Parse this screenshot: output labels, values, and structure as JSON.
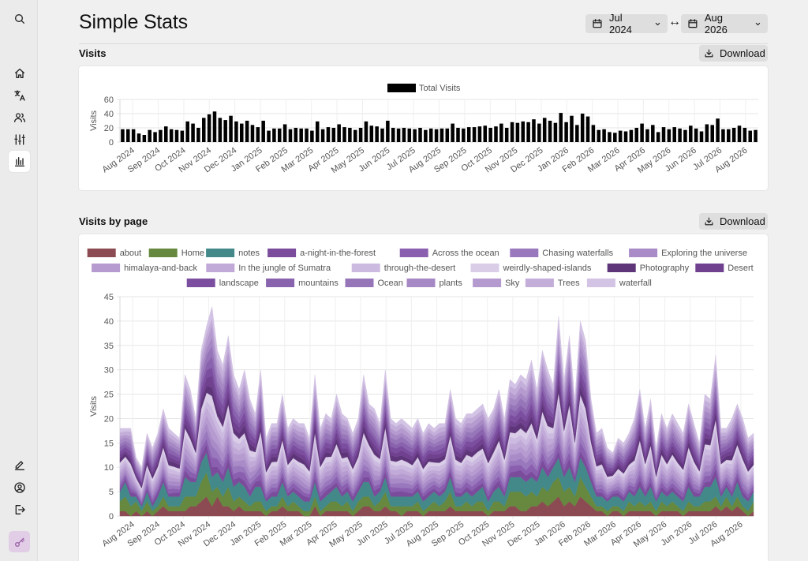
{
  "app": {
    "title": "Simple Stats"
  },
  "sidebar": {
    "top": [
      {
        "name": "search-icon"
      },
      {
        "name": "home-icon"
      },
      {
        "name": "translate-icon"
      },
      {
        "name": "users-icon"
      },
      {
        "name": "sliders-icon"
      },
      {
        "name": "bar-chart-icon",
        "active": true
      }
    ],
    "bottom": [
      {
        "name": "edit-icon"
      },
      {
        "name": "user-circle-icon"
      },
      {
        "name": "logout-icon"
      },
      {
        "name": "key-icon"
      }
    ]
  },
  "date_range": {
    "start": "Jul 2024",
    "end": "Aug 2026",
    "separator": "↔"
  },
  "sections": {
    "visits": {
      "title": "Visits",
      "download_label": "Download"
    },
    "visits_by_page": {
      "title": "Visits by page",
      "download_label": "Download"
    }
  },
  "chart_data": [
    {
      "type": "bar",
      "ylabel": "Visits",
      "ylim": [
        0,
        60
      ],
      "yticks": [
        0,
        20,
        40,
        60
      ],
      "x_tick_labels": [
        "Aug 2024",
        "Sep 2024",
        "Oct 2024",
        "Nov 2024",
        "Dec 2024",
        "Jan 2025",
        "Feb 2025",
        "Mar 2025",
        "Apr 2025",
        "May 2025",
        "Jun 2025",
        "Jul 2025",
        "Aug 2025",
        "Sep 2025",
        "Oct 2025",
        "Nov 2025",
        "Dec 2025",
        "Jan 2026",
        "Feb 2026",
        "Mar 2026",
        "Apr 2026",
        "May 2026",
        "Jun 2026",
        "Jul 2026",
        "Aug 2026"
      ],
      "legend_position": "top-center",
      "grid": true,
      "series": [
        {
          "name": "Total Visits",
          "color": "#000000",
          "values": [
            18,
            18,
            18,
            12,
            10,
            17,
            14,
            17,
            22,
            18,
            17,
            16,
            29,
            26,
            20,
            34,
            39,
            43,
            34,
            31,
            37,
            29,
            26,
            30,
            24,
            21,
            30,
            16,
            19,
            19,
            25,
            18,
            20,
            19,
            19,
            16,
            29,
            18,
            21,
            20,
            25,
            21,
            20,
            17,
            20,
            29,
            23,
            22,
            19,
            30,
            20,
            19,
            20,
            19,
            18,
            20,
            17,
            19,
            18,
            19,
            19,
            26,
            20,
            19,
            21,
            21,
            22,
            23,
            20,
            22,
            26,
            20,
            28,
            27,
            29,
            28,
            32,
            26,
            34,
            30,
            27,
            41,
            28,
            37,
            24,
            40,
            36,
            24,
            17,
            18,
            14,
            13,
            16,
            15,
            17,
            20,
            26,
            18,
            24,
            14,
            21,
            18,
            21,
            19,
            17,
            23,
            19,
            15,
            25,
            24,
            33,
            18,
            18,
            20,
            23,
            20,
            16,
            17
          ]
        }
      ]
    },
    {
      "type": "area",
      "stacked": true,
      "ylabel": "Visits",
      "ylim": [
        0,
        45
      ],
      "yticks": [
        0,
        5,
        10,
        15,
        20,
        25,
        30,
        35,
        40,
        45
      ],
      "x_tick_labels": [
        "Aug 2024",
        "Sep 2024",
        "Oct 2024",
        "Nov 2024",
        "Dec 2024",
        "Jan 2025",
        "Feb 2025",
        "Mar 2025",
        "Apr 2025",
        "May 2025",
        "Jun 2025",
        "Jul 2025",
        "Aug 2025",
        "Sep 2025",
        "Oct 2025",
        "Nov 2025",
        "Dec 2025",
        "Jan 2026",
        "Feb 2026",
        "Mar 2026",
        "Apr 2026",
        "May 2026",
        "Jun 2026",
        "Jul 2026",
        "Aug 2026"
      ],
      "legend_position": "top-center",
      "grid": true,
      "legend": [
        {
          "name": "about",
          "color": "#8c4b52"
        },
        {
          "name": "Home",
          "color": "#66893f"
        },
        {
          "name": "notes",
          "color": "#44898a"
        },
        {
          "name": "a-night-in-the-forest",
          "color": "#7b4c9c"
        },
        {
          "name": "Across the ocean",
          "color": "#8a5fb0"
        },
        {
          "name": "Chasing waterfalls",
          "color": "#9a78bd"
        },
        {
          "name": "Exploring the universe",
          "color": "#a98bc8"
        },
        {
          "name": "himalaya-and-back",
          "color": "#b59bd0"
        },
        {
          "name": "In the jungle of Sumatra",
          "color": "#c1aad8"
        },
        {
          "name": "through-the-desert",
          "color": "#ccbae0"
        },
        {
          "name": "weirdly-shaped-islands",
          "color": "#d9cde8"
        },
        {
          "name": "Photography",
          "color": "#5e3579"
        },
        {
          "name": "Desert",
          "color": "#70418f"
        },
        {
          "name": "landscape",
          "color": "#7c4ea0"
        },
        {
          "name": "mountains",
          "color": "#8a63ae"
        },
        {
          "name": "Ocean",
          "color": "#9775b9"
        },
        {
          "name": "plants",
          "color": "#a688c4"
        },
        {
          "name": "Sky",
          "color": "#b49ace"
        },
        {
          "name": "Trees",
          "color": "#c3add9"
        },
        {
          "name": "waterfall",
          "color": "#d3c3e4"
        }
      ],
      "series_values": {
        "about": [
          1,
          1,
          0,
          1,
          0,
          1,
          0,
          1,
          2,
          1,
          1,
          1,
          1,
          2,
          2,
          3,
          4,
          2,
          4,
          2,
          2,
          1,
          2,
          1,
          1,
          1,
          1,
          0,
          1,
          1,
          2,
          1,
          1,
          1,
          0,
          0,
          2,
          0,
          1,
          1,
          1,
          1,
          1,
          0,
          1,
          2,
          2,
          1,
          1,
          2,
          1,
          1,
          0,
          1,
          1,
          1,
          0,
          1,
          1,
          1,
          1,
          2,
          1,
          1,
          1,
          1,
          1,
          1,
          0,
          1,
          1,
          1,
          2,
          2,
          1,
          1,
          2,
          2,
          3,
          2,
          3,
          4,
          2,
          3,
          2,
          4,
          3,
          2,
          1,
          1,
          0,
          1,
          1,
          0,
          1,
          1,
          1,
          1,
          1,
          0,
          1,
          1,
          1,
          1,
          0,
          1,
          1,
          1,
          1,
          1,
          2,
          1,
          2,
          1,
          2,
          1,
          0,
          1
        ],
        "Home": [
          2,
          3,
          2,
          2,
          1,
          2,
          1,
          1,
          2,
          1,
          1,
          1,
          3,
          2,
          2,
          4,
          5,
          3,
          2,
          2,
          4,
          2,
          2,
          2,
          1,
          2,
          2,
          1,
          1,
          1,
          2,
          1,
          2,
          1,
          1,
          1,
          2,
          1,
          1,
          2,
          2,
          1,
          2,
          1,
          2,
          2,
          2,
          1,
          2,
          3,
          1,
          1,
          2,
          1,
          1,
          2,
          1,
          1,
          2,
          1,
          2,
          3,
          1,
          1,
          2,
          1,
          2,
          2,
          1,
          2,
          2,
          1,
          3,
          3,
          4,
          3,
          3,
          2,
          3,
          3,
          4,
          4,
          3,
          3,
          2,
          4,
          3,
          2,
          1,
          1,
          1,
          1,
          1,
          1,
          2,
          1,
          2,
          1,
          2,
          1,
          2,
          1,
          2,
          1,
          1,
          2,
          1,
          1,
          2,
          2,
          2,
          1,
          2,
          1,
          2,
          1,
          1,
          2
        ],
        "notes": [
          2,
          3,
          2,
          1,
          1,
          2,
          1,
          2,
          3,
          2,
          2,
          2,
          4,
          3,
          3,
          4,
          4,
          3,
          3,
          3,
          4,
          3,
          3,
          3,
          2,
          3,
          3,
          2,
          2,
          2,
          3,
          2,
          2,
          2,
          2,
          2,
          3,
          2,
          2,
          2,
          3,
          2,
          2,
          2,
          2,
          3,
          3,
          2,
          2,
          3,
          2,
          2,
          2,
          2,
          2,
          2,
          2,
          2,
          2,
          2,
          2,
          3,
          2,
          2,
          2,
          2,
          2,
          3,
          2,
          2,
          3,
          2,
          3,
          3,
          3,
          3,
          3,
          3,
          4,
          3,
          3,
          4,
          3,
          4,
          3,
          4,
          4,
          3,
          2,
          2,
          2,
          2,
          2,
          2,
          2,
          2,
          3,
          2,
          3,
          2,
          2,
          2,
          2,
          2,
          2,
          3,
          2,
          2,
          3,
          3,
          4,
          2,
          2,
          2,
          3,
          2,
          2,
          2
        ],
        "rest": [
          13,
          11,
          14,
          8,
          8,
          12,
          12,
          13,
          15,
          14,
          13,
          12,
          21,
          19,
          13,
          23,
          26,
          35,
          25,
          24,
          27,
          23,
          19,
          24,
          20,
          15,
          24,
          13,
          15,
          15,
          18,
          14,
          15,
          15,
          16,
          13,
          22,
          15,
          17,
          15,
          19,
          17,
          15,
          14,
          15,
          22,
          16,
          18,
          14,
          22,
          16,
          15,
          16,
          15,
          14,
          15,
          14,
          15,
          13,
          15,
          14,
          18,
          16,
          15,
          16,
          17,
          17,
          17,
          17,
          17,
          20,
          16,
          20,
          19,
          21,
          21,
          24,
          19,
          24,
          22,
          17,
          29,
          20,
          27,
          17,
          28,
          26,
          17,
          13,
          14,
          11,
          9,
          12,
          12,
          12,
          16,
          20,
          14,
          18,
          11,
          16,
          14,
          16,
          15,
          14,
          17,
          15,
          11,
          19,
          18,
          25,
          14,
          12,
          16,
          16,
          16,
          13,
          12
        ]
      }
    }
  ]
}
